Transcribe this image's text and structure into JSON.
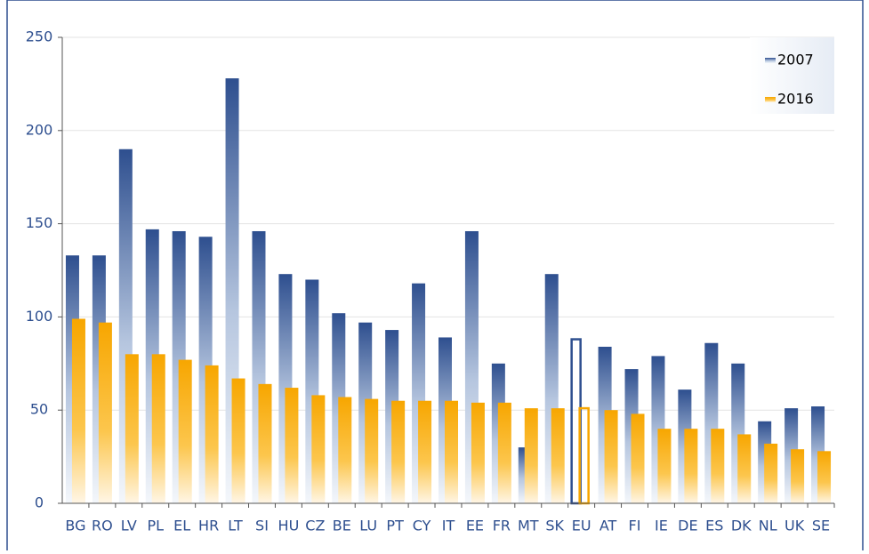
{
  "chart_data": {
    "type": "bar",
    "categories": [
      "BG",
      "RO",
      "LV",
      "PL",
      "EL",
      "HR",
      "LT",
      "SI",
      "HU",
      "CZ",
      "BE",
      "LU",
      "PT",
      "CY",
      "IT",
      "EE",
      "FR",
      "MT",
      "SK",
      "EU",
      "AT",
      "FI",
      "IE",
      "DE",
      "ES",
      "DK",
      "NL",
      "UK",
      "SE"
    ],
    "series": [
      {
        "name": "2007",
        "color": "#2e4f8f",
        "values": [
          133,
          133,
          190,
          147,
          146,
          143,
          228,
          146,
          123,
          120,
          102,
          97,
          93,
          118,
          89,
          146,
          75,
          30,
          123,
          88,
          84,
          72,
          79,
          61,
          86,
          75,
          44,
          51,
          52
        ]
      },
      {
        "name": "2016",
        "color": "#f7a600",
        "values": [
          99,
          97,
          80,
          80,
          77,
          74,
          67,
          64,
          62,
          58,
          57,
          56,
          55,
          55,
          55,
          54,
          54,
          51,
          51,
          51,
          50,
          48,
          40,
          40,
          40,
          37,
          32,
          29,
          28
        ]
      }
    ],
    "highlight_category": "EU",
    "ylim": [
      0,
      250
    ],
    "yticks": [
      0,
      50,
      100,
      150,
      200,
      250
    ],
    "grid": true,
    "legend": "top-right"
  }
}
